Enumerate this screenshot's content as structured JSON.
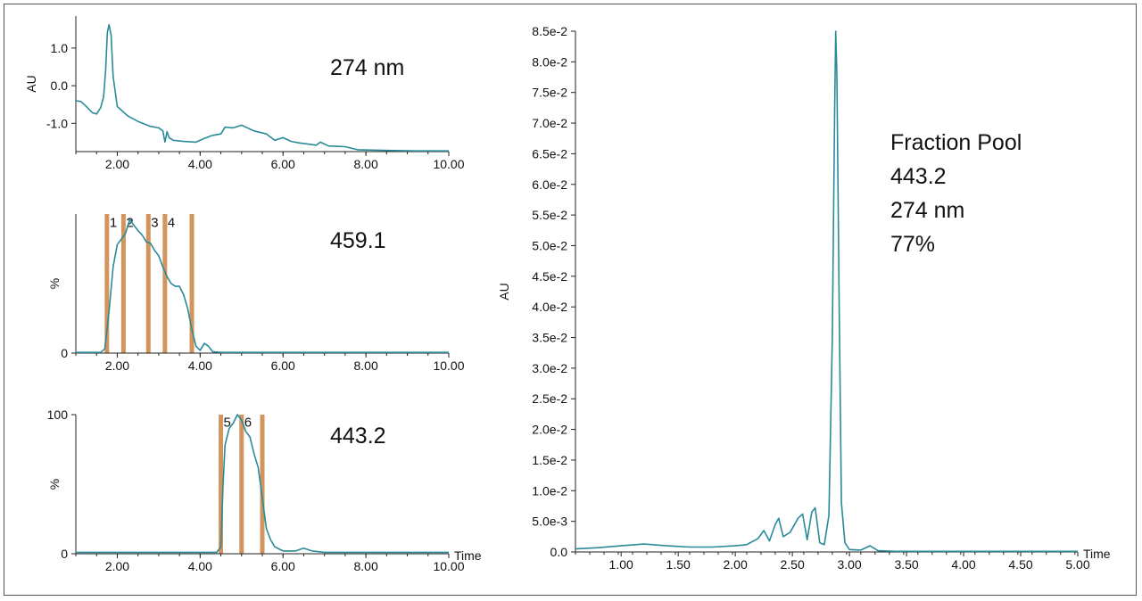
{
  "line_color": "#2a8a9a",
  "cut_color": "#d2955d",
  "chart_data": [
    {
      "id": "p1",
      "type": "line",
      "ylabel": "AU",
      "xlabel": "",
      "annotation": [
        "274 nm"
      ],
      "xlim": [
        1.0,
        10.0
      ],
      "ylim": [
        -1.75,
        1.85
      ],
      "xticks": [
        2,
        4,
        6,
        8,
        10
      ],
      "xtick_labels": [
        "2.00",
        "4.00",
        "6.00",
        "8.00",
        "10.00"
      ],
      "yticks": [
        1.0,
        0.0,
        -1.0
      ],
      "ytick_labels": [
        "1.0",
        "0.0",
        "-1.0"
      ],
      "series": [
        {
          "x": [
            1.0,
            1.12,
            1.25,
            1.4,
            1.5,
            1.6,
            1.67,
            1.72,
            1.76,
            1.8,
            1.85,
            1.9,
            2.0,
            2.1,
            2.25,
            2.5,
            2.8,
            3.0,
            3.1,
            3.15,
            3.2,
            3.25,
            3.35,
            3.6,
            3.9,
            4.1,
            4.3,
            4.5,
            4.6,
            4.8,
            5.0,
            5.3,
            5.6,
            5.8,
            6.0,
            6.2,
            6.4,
            6.6,
            6.8,
            6.9,
            7.1,
            7.5,
            7.8,
            8.5,
            9.2,
            10.0
          ],
          "y": [
            -0.4,
            -0.42,
            -0.55,
            -0.72,
            -0.75,
            -0.58,
            -0.3,
            0.4,
            1.4,
            1.62,
            1.35,
            0.25,
            -0.55,
            -0.65,
            -0.8,
            -0.95,
            -1.08,
            -1.12,
            -1.2,
            -1.5,
            -1.22,
            -1.38,
            -1.45,
            -1.48,
            -1.5,
            -1.4,
            -1.32,
            -1.28,
            -1.1,
            -1.12,
            -1.05,
            -1.2,
            -1.28,
            -1.45,
            -1.38,
            -1.48,
            -1.52,
            -1.55,
            -1.58,
            -1.5,
            -1.6,
            -1.62,
            -1.7,
            -1.72,
            -1.73,
            -1.73
          ]
        }
      ]
    },
    {
      "id": "p2",
      "type": "line",
      "ylabel": "%",
      "xlabel": "",
      "annotation": [
        "459.1"
      ],
      "xlim": [
        1.0,
        10.0
      ],
      "ylim": [
        0,
        100
      ],
      "xticks": [
        2,
        4,
        6,
        8,
        10
      ],
      "xtick_labels": [
        "2.00",
        "4.00",
        "6.00",
        "8.00",
        "10.00"
      ],
      "yticks": [
        0
      ],
      "ytick_labels": [
        "0"
      ],
      "fraction_cuts": [
        1.75,
        2.15,
        2.75,
        3.15,
        3.8
      ],
      "fraction_labels": [
        "1",
        "2",
        "3",
        "4"
      ],
      "series": [
        {
          "x": [
            1.0,
            1.6,
            1.7,
            1.8,
            1.9,
            2.0,
            2.1,
            2.2,
            2.3,
            2.4,
            2.5,
            2.6,
            2.7,
            2.8,
            2.9,
            3.0,
            3.1,
            3.2,
            3.3,
            3.4,
            3.5,
            3.6,
            3.7,
            3.8,
            3.9,
            4.0,
            4.1,
            4.2,
            4.3,
            4.5,
            5.0,
            6.0,
            8.0,
            10.0
          ],
          "y": [
            0.5,
            0.5,
            3,
            30,
            62,
            78,
            82,
            86,
            96,
            92,
            88,
            85,
            80,
            79,
            74,
            70,
            62,
            55,
            50,
            48,
            48,
            42,
            32,
            17,
            5,
            2,
            7,
            5,
            1,
            0.5,
            0.5,
            0.5,
            0.5,
            0.5
          ]
        }
      ]
    },
    {
      "id": "p3",
      "type": "line",
      "ylabel": "%",
      "xlabel": "Time",
      "annotation": [
        "443.2"
      ],
      "xlim": [
        1.0,
        10.0
      ],
      "ylim": [
        0,
        100
      ],
      "xticks": [
        2,
        4,
        6,
        8,
        10
      ],
      "xtick_labels": [
        "2.00",
        "4.00",
        "6.00",
        "8.00",
        "10.00"
      ],
      "yticks": [
        100,
        0
      ],
      "ytick_labels": [
        "100",
        "0"
      ],
      "fraction_cuts": [
        4.5,
        5.0,
        5.5
      ],
      "fraction_labels": [
        "5",
        "6"
      ],
      "series": [
        {
          "x": [
            1.0,
            4.4,
            4.5,
            4.55,
            4.6,
            4.7,
            4.8,
            4.9,
            5.0,
            5.1,
            5.2,
            5.3,
            5.4,
            5.5,
            5.6,
            5.7,
            5.8,
            6.0,
            6.3,
            6.5,
            6.7,
            7.0,
            10.0
          ],
          "y": [
            1,
            1,
            5,
            48,
            78,
            90,
            94,
            100,
            96,
            88,
            84,
            72,
            62,
            40,
            18,
            10,
            5,
            2,
            2,
            4,
            2,
            1,
            1
          ]
        }
      ]
    },
    {
      "id": "p4",
      "type": "line",
      "ylabel": "AU",
      "xlabel": "Time",
      "annotation": [
        "Fraction Pool",
        "443.2",
        "274 nm",
        "77%"
      ],
      "xlim": [
        0.6,
        5.0
      ],
      "ylim": [
        0.0,
        0.085
      ],
      "xticks": [
        1.0,
        1.5,
        2.0,
        2.5,
        3.0,
        3.5,
        4.0,
        4.5,
        5.0
      ],
      "xtick_labels": [
        "1.00",
        "1.50",
        "2.00",
        "2.50",
        "3.00",
        "3.50",
        "4.00",
        "4.50",
        "5.00"
      ],
      "yticks": [
        0.0,
        0.005,
        0.01,
        0.015,
        0.02,
        0.025,
        0.03,
        0.035,
        0.04,
        0.045,
        0.05,
        0.055,
        0.06,
        0.065,
        0.07,
        0.075,
        0.08,
        0.085
      ],
      "ytick_labels": [
        "0.0",
        "5.0e-3",
        "1.0e-2",
        "1.5e-2",
        "2.0e-2",
        "2.5e-2",
        "3.0e-2",
        "3.5e-2",
        "4.0e-2",
        "4.5e-2",
        "5.0e-2",
        "5.5e-2",
        "6.0e-2",
        "6.5e-2",
        "7.0e-2",
        "7.5e-2",
        "8.0e-2",
        "8.5e-2"
      ],
      "series": [
        {
          "x": [
            0.6,
            0.8,
            1.0,
            1.2,
            1.4,
            1.6,
            1.8,
            2.0,
            2.1,
            2.2,
            2.25,
            2.3,
            2.35,
            2.38,
            2.42,
            2.48,
            2.55,
            2.59,
            2.63,
            2.67,
            2.7,
            2.74,
            2.78,
            2.82,
            2.85,
            2.87,
            2.88,
            2.89,
            2.91,
            2.93,
            2.96,
            3.0,
            3.1,
            3.18,
            3.25,
            3.4,
            4.0,
            5.0
          ],
          "y": [
            0.0005,
            0.0007,
            0.001,
            0.0013,
            0.001,
            0.0008,
            0.0008,
            0.001,
            0.0012,
            0.0022,
            0.0035,
            0.0018,
            0.0045,
            0.0055,
            0.0025,
            0.0032,
            0.0055,
            0.0062,
            0.002,
            0.0065,
            0.0072,
            0.0015,
            0.0012,
            0.006,
            0.035,
            0.072,
            0.085,
            0.078,
            0.04,
            0.008,
            0.0015,
            0.0004,
            0.0003,
            0.001,
            0.0002,
            0.0001,
            0.0001,
            0.0001
          ]
        }
      ]
    }
  ]
}
